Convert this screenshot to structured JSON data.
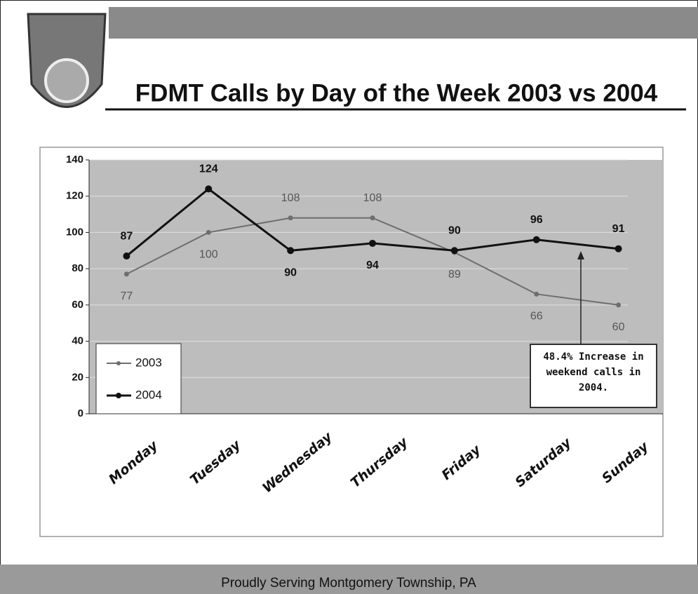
{
  "chart_data": {
    "type": "line",
    "title": "FDMT Calls by Day of the Week 2003 vs 2004",
    "categories": [
      "Monday",
      "Tuesday",
      "Wednesday",
      "Thursday",
      "Friday",
      "Saturday",
      "Sunday"
    ],
    "series": [
      {
        "name": "2003",
        "color": "#6e6e6e",
        "values": [
          77,
          100,
          108,
          108,
          89,
          66,
          60
        ]
      },
      {
        "name": "2004",
        "color": "#111111",
        "values": [
          87,
          124,
          90,
          94,
          90,
          96,
          91
        ]
      }
    ],
    "ylim": [
      0,
      140
    ],
    "yticks": [
      0,
      20,
      40,
      60,
      80,
      100,
      120,
      140
    ],
    "grid": true,
    "legend": "bottom-left",
    "annotation": "48.4% Increase in weekend calls in 2004."
  },
  "footer": "Proudly Serving Montgomery Township, PA"
}
